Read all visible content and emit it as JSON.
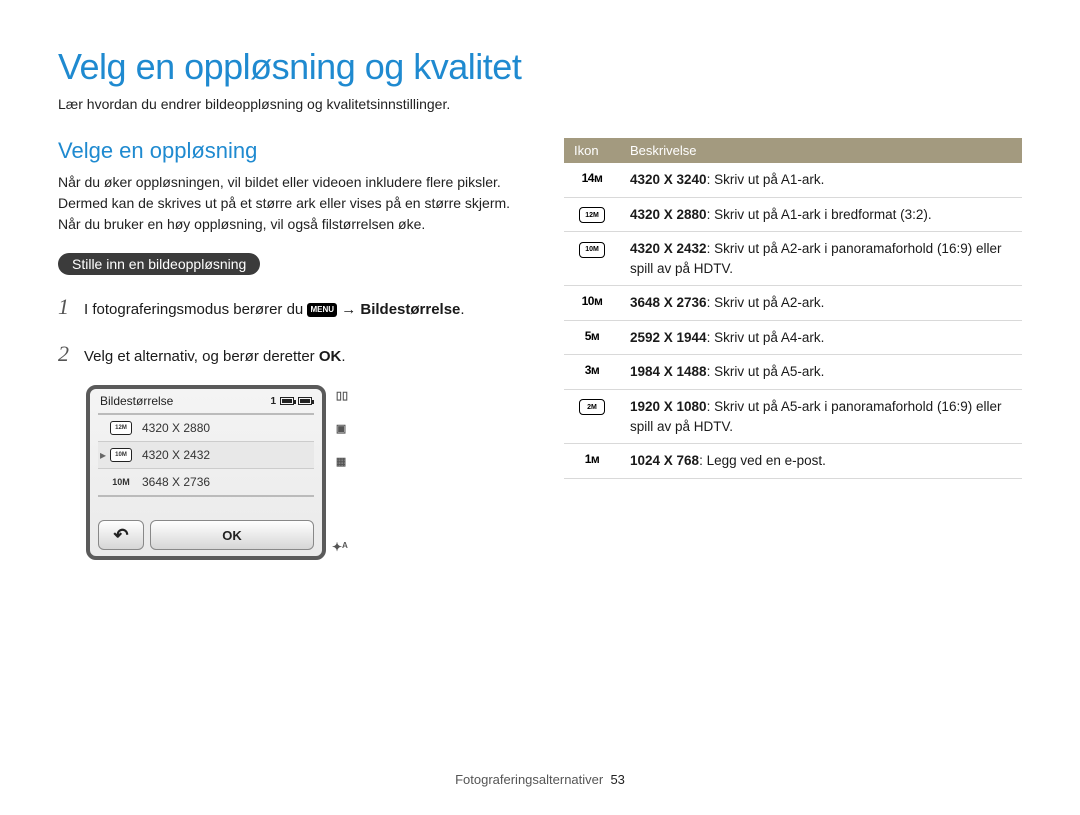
{
  "page": {
    "title": "Velg en oppløsning og kvalitet",
    "subtitle": "Lær hvordan du endrer bildeoppløsning og kvalitetsinnstillinger."
  },
  "left": {
    "heading": "Velge en oppløsning",
    "body": "Når du øker oppløsningen, vil bildet eller videoen inkludere flere piksler. Dermed kan de skrives ut på et større ark eller vises på en større skjerm. Når du bruker en høy oppløsning, vil også filstørrelsen øke.",
    "pill": "Stille inn en bildeoppløsning",
    "step1_pre": "I fotograferingsmodus berører du ",
    "step1_menu": "MENU",
    "step1_arrow": " → ",
    "step1_post": "Bildestørrelse",
    "step1_dot": ".",
    "step2_pre": "Velg et alternativ, og berør deretter ",
    "step2_ok": "OK",
    "step2_dot": "."
  },
  "mock": {
    "title": "Bildestørrelse",
    "status_count": "1",
    "opt1_ico": "12M",
    "opt1_txt": "4320 X 2880",
    "opt2_ico": "10M",
    "opt2_txt": "4320 X 2432",
    "opt3_ico": "10M",
    "opt3_txt": "3648 X 2736",
    "back": "↶",
    "ok": "OK",
    "side_top1": "▯▯",
    "side_top2": "▣",
    "side_top3": "▦",
    "side_bottom": "✦ᴬ"
  },
  "table": {
    "head_icon": "Ikon",
    "head_desc": "Beskrivelse",
    "rows": [
      {
        "icon": "14ᴍ",
        "boxed": false,
        "bold": "4320 X 3240",
        "desc": ": Skriv ut på A1-ark."
      },
      {
        "icon": "12M",
        "boxed": true,
        "bold": "4320 X 2880",
        "desc": ": Skriv ut på A1-ark i bredformat (3:2)."
      },
      {
        "icon": "10M",
        "boxed": true,
        "bold": "4320 X 2432",
        "desc": ": Skriv ut på A2-ark i panoramaforhold (16:9) eller spill av på HDTV."
      },
      {
        "icon": "10ᴍ",
        "boxed": false,
        "bold": "3648 X 2736",
        "desc": ": Skriv ut på A2-ark."
      },
      {
        "icon": "5ᴍ",
        "boxed": false,
        "bold": "2592 X 1944",
        "desc": ": Skriv ut på A4-ark."
      },
      {
        "icon": "3ᴍ",
        "boxed": false,
        "bold": "1984 X 1488",
        "desc": ": Skriv ut på A5-ark."
      },
      {
        "icon": "2M",
        "boxed": true,
        "bold": "1920 X 1080",
        "desc": ": Skriv ut på A5-ark i panoramaforhold (16:9) eller spill av på HDTV."
      },
      {
        "icon": "1ᴍ",
        "boxed": false,
        "bold": "1024 X 768",
        "desc": ": Legg ved en e-post."
      }
    ]
  },
  "footer": {
    "section": "Fotograferingsalternativer",
    "page": "53"
  }
}
